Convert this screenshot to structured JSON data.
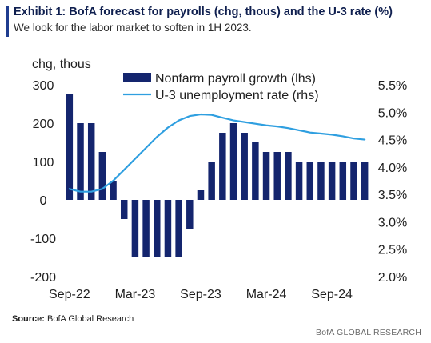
{
  "header": {
    "title": "Exhibit 1: BofA forecast for payrolls (chg, thous) and the U-3 rate (%)",
    "subtitle": "We look for the labor market to soften in 1H 2023."
  },
  "footer": {
    "source_label": "Source:",
    "source_text": "BofA Global Research",
    "brand": "BofA GLOBAL RESEARCH"
  },
  "colors": {
    "bar": "#14256e",
    "line": "#2f9fe0",
    "accent": "#1f3c8f"
  },
  "chart_data": {
    "type": "bar",
    "left_axis_title": "chg, thous",
    "x": [
      "Sep-22",
      "Oct-22",
      "Nov-22",
      "Dec-22",
      "Jan-23",
      "Feb-23",
      "Mar-23",
      "Apr-23",
      "May-23",
      "Jun-23",
      "Jul-23",
      "Aug-23",
      "Sep-23",
      "Oct-23",
      "Nov-23",
      "Dec-23",
      "Jan-24",
      "Feb-24",
      "Mar-24",
      "Apr-24",
      "May-24",
      "Jun-24",
      "Jul-24",
      "Aug-24",
      "Sep-24",
      "Oct-24",
      "Nov-24",
      "Dec-24"
    ],
    "x_tick_labels": [
      "Sep-22",
      "Mar-23",
      "Sep-23",
      "Mar-24",
      "Sep-24"
    ],
    "series": [
      {
        "name": "Nonfarm payroll growth (lhs)",
        "type": "bar",
        "axis": "left",
        "values": [
          275,
          200,
          200,
          125,
          50,
          -50,
          -150,
          -150,
          -150,
          -150,
          -150,
          -75,
          25,
          100,
          175,
          200,
          175,
          150,
          125,
          125,
          125,
          100,
          100,
          100,
          100,
          100,
          100,
          100
        ]
      },
      {
        "name": "U-3 unemployment rate (rhs)",
        "type": "line",
        "axis": "right",
        "values": [
          3.6,
          3.55,
          3.55,
          3.6,
          3.75,
          3.95,
          4.15,
          4.35,
          4.55,
          4.72,
          4.85,
          4.93,
          4.96,
          4.95,
          4.9,
          4.85,
          4.82,
          4.79,
          4.76,
          4.74,
          4.71,
          4.67,
          4.63,
          4.61,
          4.59,
          4.56,
          4.52,
          4.5
        ]
      }
    ],
    "y_left": {
      "ylim": [
        -200,
        300
      ],
      "ticks": [
        "300",
        "200",
        "100",
        "0",
        "-100",
        "-200"
      ],
      "tick_values": [
        300,
        200,
        100,
        0,
        -100,
        -200
      ]
    },
    "y_right": {
      "ylim": [
        2.0,
        5.5
      ],
      "ticks": [
        "5.5%",
        "5.0%",
        "4.5%",
        "4.0%",
        "3.5%",
        "3.0%",
        "2.5%",
        "2.0%"
      ],
      "tick_values": [
        5.5,
        5.0,
        4.5,
        4.0,
        3.5,
        3.0,
        2.5,
        2.0
      ]
    },
    "grid": false,
    "legend_position": "top"
  }
}
